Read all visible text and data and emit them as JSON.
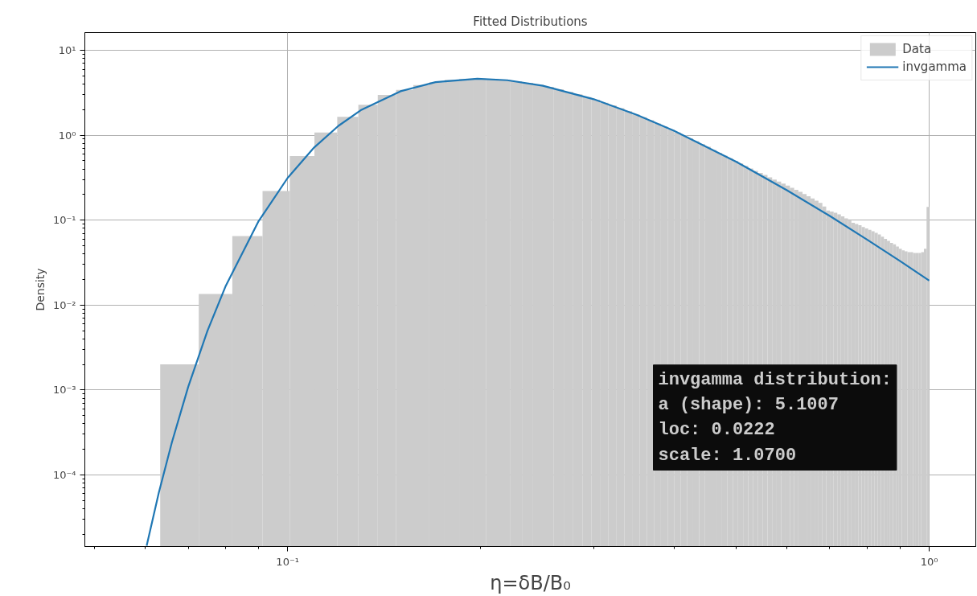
{
  "chart_data": {
    "type": "histogram",
    "title": "Fitted Distributions",
    "xlabel": "η=δB/B₀",
    "ylabel": "Density",
    "log": "xy",
    "grid": true,
    "legend": "top right",
    "xlim": [
      0.0483,
      1.182
    ],
    "ylim": [
      1.43e-05,
      16.2
    ],
    "xticks": [
      {
        "value": 0.1,
        "label": "10⁻¹"
      },
      {
        "value": 1,
        "label": "10⁰"
      }
    ],
    "yticks": [
      {
        "value": 0.0001,
        "label": "10⁻⁴"
      },
      {
        "value": 0.001,
        "label": "10⁻³"
      },
      {
        "value": 0.01,
        "label": "10⁻²"
      },
      {
        "value": 0.1,
        "label": "10⁻¹"
      },
      {
        "value": 1,
        "label": "10⁰"
      },
      {
        "value": 10,
        "label": "10¹"
      }
    ],
    "bins": [
      0.0633,
      0.0727,
      0.082,
      0.0914,
      0.1008,
      0.1101,
      0.1195,
      0.1289,
      0.1382,
      0.1476,
      0.157,
      0.1663,
      0.1757,
      0.1851,
      0.1944,
      0.2038,
      0.2132,
      0.2225,
      0.2319,
      0.2413,
      0.2506,
      0.26,
      0.2694,
      0.2787,
      0.2881,
      0.2975,
      0.3068,
      0.3162,
      0.3256,
      0.3349,
      0.3443,
      0.3537,
      0.363,
      0.3724,
      0.3818,
      0.3911,
      0.4005,
      0.4099,
      0.4192,
      0.4286,
      0.438,
      0.4473,
      0.4567,
      0.4661,
      0.4754,
      0.4848,
      0.4942,
      0.5035,
      0.5129,
      0.5223,
      0.5316,
      0.541,
      0.5504,
      0.5597,
      0.5691,
      0.5785,
      0.5878,
      0.5972,
      0.6066,
      0.6159,
      0.6253,
      0.6347,
      0.644,
      0.6534,
      0.6628,
      0.6721,
      0.6815,
      0.6909,
      0.7002,
      0.7096,
      0.719,
      0.7283,
      0.7377,
      0.7471,
      0.7564,
      0.7658,
      0.7752,
      0.7845,
      0.7939,
      0.8033,
      0.8126,
      0.822,
      0.8314,
      0.8407,
      0.8501,
      0.8595,
      0.8688,
      0.8782,
      0.8876,
      0.8969,
      0.9063,
      0.9157,
      0.925,
      0.9344,
      0.9438,
      0.9531,
      0.9625,
      0.9719,
      0.9812,
      0.9906,
      1.0
    ],
    "series": [
      {
        "name": "Data",
        "color": "#cccccc",
        "values": [
          0.002,
          0.0135,
          0.065,
          0.22,
          0.57,
          1.08,
          1.65,
          2.29,
          2.98,
          3.43,
          3.91,
          4.22,
          4.49,
          4.6,
          4.64,
          4.59,
          4.48,
          4.33,
          4.14,
          3.93,
          3.71,
          3.48,
          3.25,
          3.03,
          2.82,
          2.62,
          2.42,
          2.25,
          2.08,
          1.92,
          1.76,
          1.63,
          1.5,
          1.38,
          1.27,
          1.17,
          1.08,
          1.0,
          0.92,
          0.85,
          0.785,
          0.73,
          0.67,
          0.62,
          0.575,
          0.535,
          0.5,
          0.465,
          0.435,
          0.405,
          0.38,
          0.36,
          0.34,
          0.32,
          0.3,
          0.285,
          0.27,
          0.255,
          0.24,
          0.228,
          0.215,
          0.203,
          0.191,
          0.18,
          0.17,
          0.16,
          0.145,
          0.13,
          0.126,
          0.122,
          0.117,
          0.111,
          0.105,
          0.099,
          0.093,
          0.09,
          0.087,
          0.083,
          0.08,
          0.077,
          0.074,
          0.071,
          0.068,
          0.064,
          0.06,
          0.057,
          0.054,
          0.052,
          0.049,
          0.046,
          0.044,
          0.043,
          0.042,
          0.042,
          0.041,
          0.041,
          0.041,
          0.042,
          0.046,
          0.143
        ]
      },
      {
        "name": "invgamma",
        "type": "line",
        "color": "#1f77b4",
        "x": [
          0.0603,
          0.063,
          0.066,
          0.07,
          0.075,
          0.08,
          0.09,
          0.1,
          0.11,
          0.12,
          0.13,
          0.15,
          0.17,
          0.1976,
          0.22,
          0.25,
          0.3,
          0.35,
          0.4,
          0.5,
          0.6,
          0.7,
          0.8,
          0.9,
          1.0
        ],
        "values": [
          1.46e-05,
          6.2e-05,
          0.00024,
          0.00109,
          0.00497,
          0.0165,
          0.0957,
          0.314,
          0.718,
          1.29,
          1.97,
          3.3,
          4.22,
          4.64,
          4.45,
          3.83,
          2.66,
          1.74,
          1.13,
          0.488,
          0.225,
          0.112,
          0.0591,
          0.0331,
          0.0194
        ]
      }
    ],
    "annotations": [
      "invgamma distribution:\n  a (shape): 5.1007\n  loc: 0.0222\n  scale: 1.0700"
    ]
  }
}
